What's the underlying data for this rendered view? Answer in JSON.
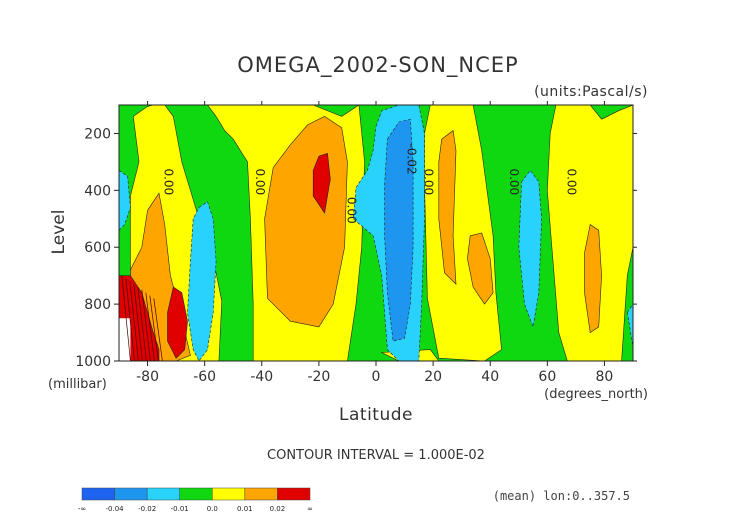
{
  "chart_data": {
    "type": "heatmap",
    "title": "OMEGA_2002-SON_NCEP",
    "units_label": "(units:Pascal/s)",
    "xlabel": "Latitude",
    "ylabel": "Level",
    "x_unit_label": "(degrees_north)",
    "y_unit_label": "(millibar)",
    "xlim": [
      -90,
      90
    ],
    "ylim": [
      1000,
      100
    ],
    "x_ticks": [
      -80,
      -60,
      -40,
      -20,
      0,
      20,
      40,
      60,
      80
    ],
    "x_tick_labels": [
      "-80",
      "-60",
      "-40",
      "-20",
      "0",
      "20",
      "40",
      "60",
      "80"
    ],
    "y_ticks": [
      200,
      400,
      600,
      800,
      1000
    ],
    "y_tick_labels": [
      "200",
      "400",
      "600",
      "800",
      "1000"
    ],
    "contour_interval_text": "CONTOUR INTERVAL = 1.000E-02",
    "footer_note": "(mean) lon:0..357.5",
    "contour_labels": [
      {
        "text": "0.00",
        "lat": -74,
        "level": 370
      },
      {
        "text": "0.00",
        "lat": -42,
        "level": 370
      },
      {
        "text": "0.00",
        "lat": -10,
        "level": 470
      },
      {
        "text": "-0.02",
        "lat": 11,
        "level": 290
      },
      {
        "text": "0.00",
        "lat": 17,
        "level": 370
      },
      {
        "text": "0.00",
        "lat": 47,
        "level": 370
      },
      {
        "text": "0.00",
        "lat": 67,
        "level": 370
      }
    ],
    "levels": [
      -0.04,
      -0.02,
      -0.01,
      0.0,
      0.01,
      0.02
    ],
    "colorbar": {
      "colors": [
        "#1e64f0",
        "#1e96f0",
        "#28d2fa",
        "#10d810",
        "#ffff00",
        "#ffa500",
        "#e00000"
      ],
      "tick_labels": [
        "-∞",
        "-0.04",
        "-0.02",
        "-0.01",
        "0.0",
        "0.01",
        "0.02",
        "∞"
      ]
    },
    "colors": {
      "blue": "#1e64f0",
      "midblue": "#1e96f0",
      "cyan": "#28d2fa",
      "green": "#10d810",
      "yellow": "#ffff00",
      "orange": "#ffa500",
      "red": "#e00000"
    },
    "regions": [
      {
        "fill": "green",
        "points": [
          [
            -90,
            100
          ],
          [
            90,
            100
          ],
          [
            90,
            1000
          ],
          [
            -90,
            1000
          ]
        ]
      },
      {
        "fill": "yellow",
        "points": [
          [
            -85,
            140
          ],
          [
            -80,
            105
          ],
          [
            -78,
            100
          ],
          [
            -74,
            100
          ],
          [
            -71,
            140
          ],
          [
            -68,
            300
          ],
          [
            -62,
            500
          ],
          [
            -57,
            640
          ],
          [
            -54,
            790
          ],
          [
            -55,
            1000
          ],
          [
            -80,
            1000
          ],
          [
            -86,
            800
          ],
          [
            -86,
            420
          ],
          [
            -83,
            300
          ]
        ]
      },
      {
        "fill": "yellow",
        "points": [
          [
            -59,
            100
          ],
          [
            -22,
            100
          ],
          [
            -12,
            140
          ],
          [
            -6,
            100
          ],
          [
            -4,
            300
          ],
          [
            -5,
            600
          ],
          [
            -7,
            800
          ],
          [
            -10,
            1000
          ],
          [
            -43,
            1000
          ],
          [
            -43,
            800
          ],
          [
            -44,
            500
          ],
          [
            -45,
            300
          ],
          [
            -50,
            220
          ],
          [
            -53,
            190
          ],
          [
            -56,
            140
          ]
        ]
      },
      {
        "fill": "yellow",
        "points": [
          [
            19,
            100
          ],
          [
            34,
            100
          ],
          [
            37,
            260
          ],
          [
            41,
            560
          ],
          [
            42,
            760
          ],
          [
            44,
            960
          ],
          [
            38,
            1000
          ],
          [
            22,
            990
          ],
          [
            18,
            780
          ],
          [
            17,
            380
          ],
          [
            17,
            200
          ]
        ]
      },
      {
        "fill": "yellow",
        "points": [
          [
            2,
            970
          ],
          [
            8,
            1000
          ],
          [
            22,
            1000
          ],
          [
            19,
            960
          ]
        ]
      },
      {
        "fill": "yellow",
        "points": [
          [
            63,
            100
          ],
          [
            75,
            100
          ],
          [
            79,
            150
          ],
          [
            85,
            120
          ],
          [
            90,
            100
          ],
          [
            90,
            600
          ],
          [
            88,
            700
          ],
          [
            86,
            1000
          ],
          [
            67,
            1000
          ],
          [
            64,
            900
          ],
          [
            62,
            650
          ],
          [
            60,
            400
          ],
          [
            61,
            200
          ]
        ]
      },
      {
        "fill": "orange",
        "points": [
          [
            -80,
            470
          ],
          [
            -76,
            410
          ],
          [
            -74,
            520
          ],
          [
            -72,
            700
          ],
          [
            -68,
            850
          ],
          [
            -65,
            980
          ],
          [
            -70,
            1000
          ],
          [
            -84,
            1000
          ],
          [
            -86,
            800
          ],
          [
            -86,
            680
          ],
          [
            -82,
            600
          ]
        ]
      },
      {
        "fill": "orange",
        "points": [
          [
            -18,
            140
          ],
          [
            -12,
            180
          ],
          [
            -10,
            300
          ],
          [
            -11,
            600
          ],
          [
            -15,
            800
          ],
          [
            -20,
            880
          ],
          [
            -30,
            860
          ],
          [
            -38,
            780
          ],
          [
            -39,
            500
          ],
          [
            -36,
            320
          ],
          [
            -30,
            240
          ],
          [
            -24,
            170
          ]
        ]
      },
      {
        "fill": "orange",
        "points": [
          [
            23,
            220
          ],
          [
            27,
            190
          ],
          [
            28,
            260
          ],
          [
            27,
            560
          ],
          [
            28,
            730
          ],
          [
            24,
            690
          ],
          [
            22,
            500
          ],
          [
            22,
            300
          ]
        ]
      },
      {
        "fill": "orange",
        "points": [
          [
            33,
            560
          ],
          [
            37,
            550
          ],
          [
            40,
            640
          ],
          [
            41,
            760
          ],
          [
            38,
            800
          ],
          [
            34,
            740
          ],
          [
            32,
            640
          ]
        ]
      },
      {
        "fill": "orange",
        "points": [
          [
            75,
            520
          ],
          [
            78,
            540
          ],
          [
            79,
            700
          ],
          [
            78,
            880
          ],
          [
            75,
            900
          ],
          [
            73,
            760
          ],
          [
            73,
            620
          ]
        ]
      },
      {
        "fill": "red",
        "points": [
          [
            -20,
            280
          ],
          [
            -17,
            270
          ],
          [
            -16,
            360
          ],
          [
            -18,
            480
          ],
          [
            -22,
            420
          ],
          [
            -22,
            330
          ]
        ]
      },
      {
        "fill": "red",
        "points": [
          [
            -71,
            740
          ],
          [
            -68,
            760
          ],
          [
            -66,
            860
          ],
          [
            -67,
            960
          ],
          [
            -70,
            990
          ],
          [
            -73,
            930
          ],
          [
            -73,
            830
          ]
        ]
      },
      {
        "fill": "red",
        "points": [
          [
            -90,
            700
          ],
          [
            -86,
            700
          ],
          [
            -82,
            760
          ],
          [
            -80,
            830
          ],
          [
            -78,
            900
          ],
          [
            -76,
            960
          ],
          [
            -76,
            1000
          ],
          [
            -90,
            1000
          ]
        ]
      },
      {
        "fill": "cyan",
        "points": [
          [
            -90,
            330
          ],
          [
            -87,
            350
          ],
          [
            -86,
            460
          ],
          [
            -88,
            520
          ],
          [
            -90,
            540
          ]
        ]
      },
      {
        "fill": "cyan",
        "points": [
          [
            -62,
            460
          ],
          [
            -59,
            440
          ],
          [
            -57,
            500
          ],
          [
            -56,
            650
          ],
          [
            -57,
            830
          ],
          [
            -59,
            960
          ],
          [
            -62,
            1000
          ],
          [
            -64,
            960
          ],
          [
            -66,
            830
          ],
          [
            -65,
            650
          ],
          [
            -64,
            500
          ]
        ]
      },
      {
        "fill": "cyan",
        "points": [
          [
            0,
            175
          ],
          [
            2,
            120
          ],
          [
            8,
            100
          ],
          [
            15,
            100
          ],
          [
            17,
            200
          ],
          [
            17,
            500
          ],
          [
            16,
            800
          ],
          [
            15,
            1000
          ],
          [
            8,
            1000
          ],
          [
            4,
            960
          ],
          [
            2,
            700
          ],
          [
            -1,
            560
          ],
          [
            -8,
            500
          ],
          [
            -7,
            390
          ],
          [
            -3,
            330
          ],
          [
            -1,
            260
          ]
        ]
      },
      {
        "fill": "cyan",
        "points": [
          [
            51,
            370
          ],
          [
            54,
            330
          ],
          [
            57,
            370
          ],
          [
            58,
            500
          ],
          [
            57,
            760
          ],
          [
            55,
            880
          ],
          [
            52,
            800
          ],
          [
            50,
            600
          ]
        ]
      },
      {
        "fill": "cyan",
        "points": [
          [
            88,
            830
          ],
          [
            90,
            800
          ],
          [
            90,
            950
          ]
        ]
      },
      {
        "fill": "midblue",
        "points": [
          [
            4,
            220
          ],
          [
            8,
            160
          ],
          [
            12,
            150
          ],
          [
            13,
            300
          ],
          [
            13,
            600
          ],
          [
            12,
            800
          ],
          [
            10,
            920
          ],
          [
            6,
            930
          ],
          [
            4,
            760
          ],
          [
            3,
            560
          ],
          [
            3,
            380
          ]
        ]
      }
    ],
    "undefined_region": {
      "points": [
        [
          -90,
          850
        ],
        [
          -86,
          850
        ],
        [
          -86,
          1000
        ],
        [
          -90,
          1000
        ]
      ]
    }
  }
}
